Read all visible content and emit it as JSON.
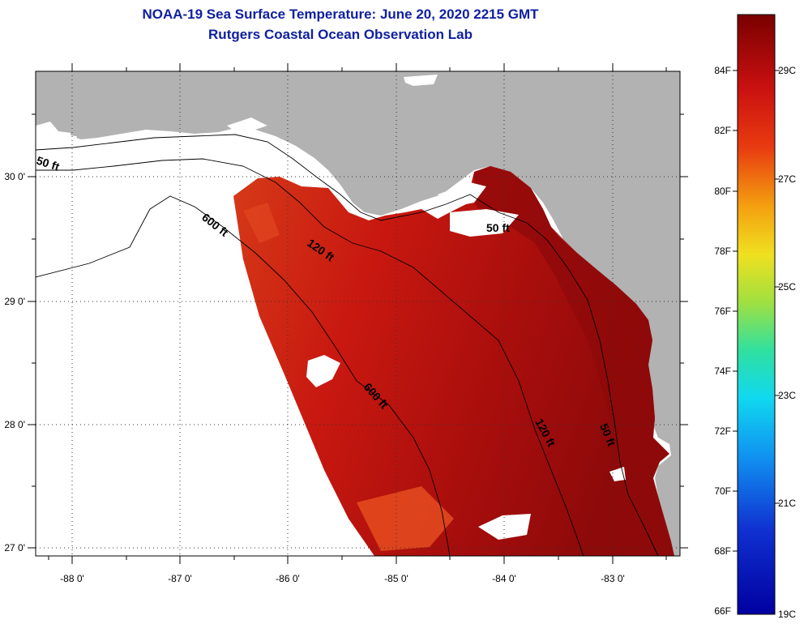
{
  "title": {
    "line1": "NOAA-19 Sea Surface Temperature:  June 20, 2020 2215 GMT",
    "line2": "Rutgers Coastal Ocean Observation Lab"
  },
  "map": {
    "lon_labels": [
      "-88 0'",
      "-87 0'",
      "-86 0'",
      "-85 0'",
      "-84 0'",
      "-83 0'"
    ],
    "lat_labels": [
      "30 0'",
      "29 0'",
      "28 0'",
      "27 0'"
    ],
    "contour_labels": {
      "west_50": "50 ft",
      "shelf_600_north": "600 ft",
      "shelf_120_north": "120 ft",
      "bay_50": "50 ft",
      "shelf_600_south": "600 ft",
      "shelf_120_south": "120 ft",
      "coast_50_south": "50 ft"
    },
    "colors": {
      "land": "#b2b2b2",
      "no_data": "#ffffff",
      "sst_base": "#cc1410",
      "sst_warm": "#8e0a0a",
      "sst_cool": "#e0441e"
    }
  },
  "colorbar": {
    "f_labels": [
      "84F",
      "82F",
      "80F",
      "78F",
      "76F",
      "74F",
      "72F",
      "70F",
      "68F",
      "66F"
    ],
    "c_labels": [
      "29C",
      "27C",
      "25C",
      "23C",
      "21C",
      "19C"
    ]
  }
}
